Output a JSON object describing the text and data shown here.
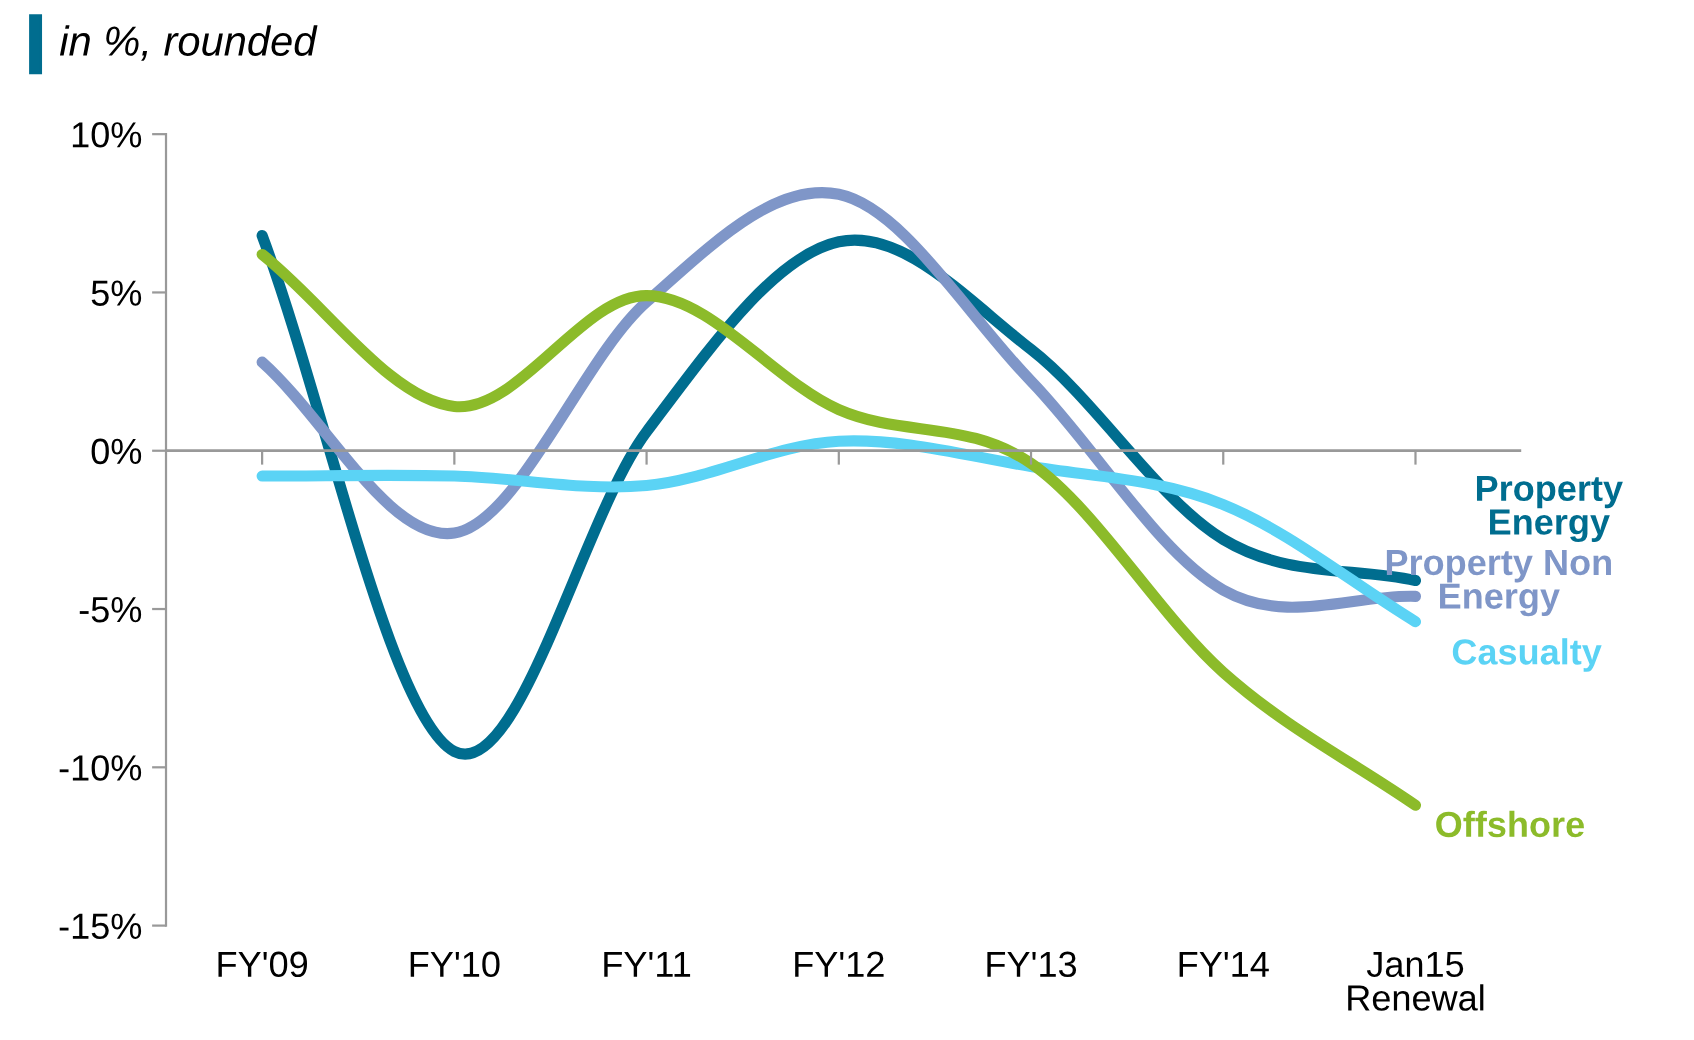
{
  "chart_data": {
    "type": "line",
    "title": "in %, rounded",
    "categories": [
      "FY'09",
      "FY'10",
      "FY'11",
      "FY'12",
      "FY'13",
      "FY'14",
      "Jan15\nRenewal"
    ],
    "series": [
      {
        "name": "Property\nEnergy",
        "color": "#006d8f",
        "values": [
          6.8,
          -9.5,
          0.6,
          6.6,
          3.2,
          -2.8,
          -4.1
        ]
      },
      {
        "name": "Property Non\nEnergy",
        "color": "#7f96c8",
        "values": [
          2.8,
          -2.6,
          4.7,
          8.1,
          2.2,
          -4.4,
          -4.6
        ]
      },
      {
        "name": "Casualty",
        "color": "#5bd3f5",
        "values": [
          -0.8,
          -0.8,
          -1.1,
          0.3,
          -0.5,
          -1.7,
          -5.4
        ]
      },
      {
        "name": "Offshore",
        "color": "#8cbb2a",
        "values": [
          6.2,
          1.4,
          4.9,
          1.3,
          -0.4,
          -7.0,
          -11.2
        ]
      }
    ],
    "ylim": [
      -15,
      10
    ],
    "yticks": [
      {
        "value": -15,
        "label": "-15%"
      },
      {
        "value": -10,
        "label": "-10%"
      },
      {
        "value": -5,
        "label": "-5%"
      },
      {
        "value": 0,
        "label": "0%"
      },
      {
        "value": 5,
        "label": "5%"
      },
      {
        "value": 10,
        "label": "10%"
      }
    ],
    "ref_lines": [
      {
        "axis": "y",
        "value": 0,
        "color": "#999999",
        "line_style": "solid"
      }
    ],
    "grid": false,
    "legend": false,
    "marker": "none",
    "line_style": "solid"
  }
}
